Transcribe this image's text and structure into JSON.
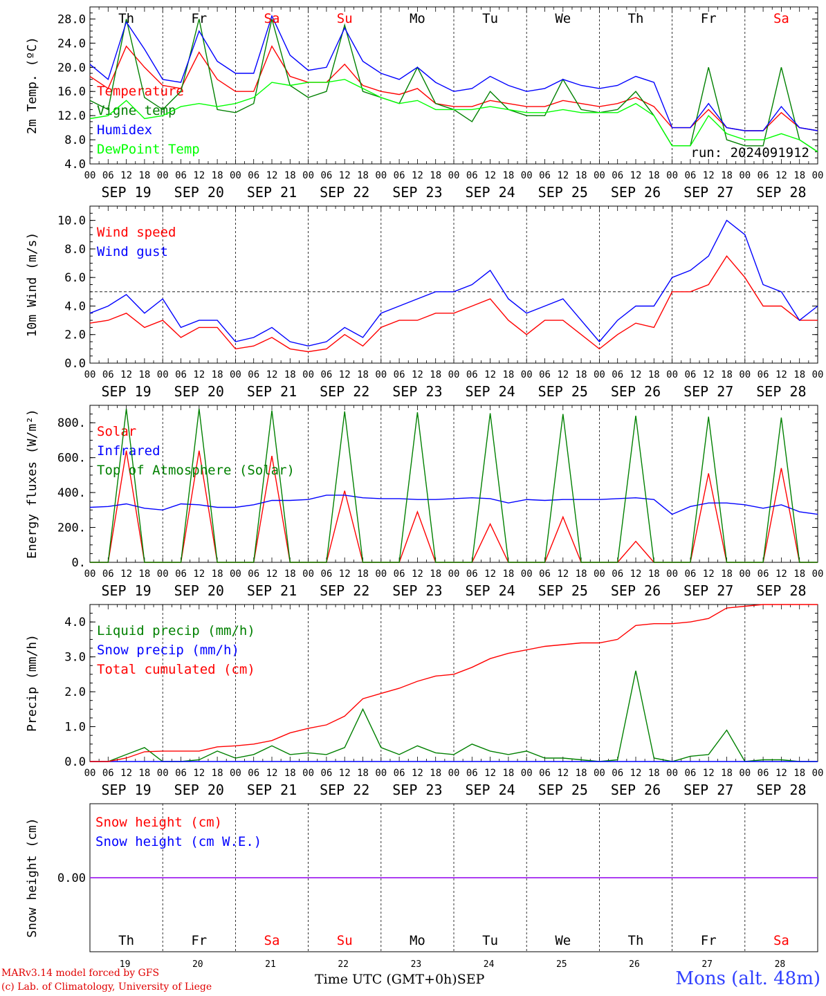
{
  "chart_data": [
    {
      "type": "line",
      "ylabel": "2m Temp. (ºC)",
      "ylim": [
        4,
        30
      ],
      "yticks": [
        "4.0",
        "8.0",
        "12.0",
        "16.0",
        "20.0",
        "24.0",
        "28.0"
      ],
      "run_label": "run: 2024091912",
      "x_hours": [
        0,
        6,
        12,
        18,
        24,
        30,
        36,
        42,
        48,
        54,
        60,
        66,
        72,
        78,
        84,
        90,
        96,
        102,
        108,
        114,
        120,
        126,
        132,
        138,
        144,
        150,
        156,
        162,
        168,
        174,
        180,
        186,
        192,
        198,
        204,
        210,
        216,
        222,
        228,
        234,
        240
      ],
      "series": [
        {
          "name": "Temperature",
          "color": "#ff0000",
          "values": [
            18.5,
            16.5,
            23.5,
            20,
            17,
            16.5,
            22.5,
            18,
            16,
            16,
            23.5,
            18.5,
            17.5,
            17.5,
            20.5,
            17,
            16,
            15.5,
            16.5,
            14,
            13.5,
            13.5,
            14.5,
            14,
            13.5,
            13.5,
            14.5,
            14,
            13.5,
            14,
            15,
            13.5,
            10,
            10,
            13,
            10,
            9.5,
            9.5,
            12.5,
            10,
            9.5
          ]
        },
        {
          "name": "Vigne temp",
          "color": "#008000",
          "values": [
            14.5,
            13,
            28,
            15,
            13,
            16,
            28,
            13,
            12.5,
            14,
            28,
            17,
            15,
            16,
            27,
            16,
            15,
            14,
            20,
            14,
            13,
            11,
            16,
            13,
            12,
            12,
            18,
            13,
            12.5,
            13,
            16,
            12,
            7,
            7,
            20,
            8,
            7,
            7,
            20,
            8,
            6
          ]
        },
        {
          "name": "Humidex",
          "color": "#0000ff",
          "values": [
            20.5,
            18,
            27.5,
            23,
            18,
            17.5,
            26,
            21,
            19,
            19,
            28.5,
            22,
            19.5,
            20,
            26.5,
            21,
            19,
            18,
            20,
            17.5,
            16,
            16.5,
            18.5,
            17,
            16,
            16.5,
            18,
            17,
            16.5,
            17,
            18.5,
            17.5,
            10,
            10,
            14,
            10,
            9.5,
            9.5,
            13.5,
            10,
            9.5
          ]
        },
        {
          "name": "DewPoint Temp",
          "color": "#00ff00",
          "values": [
            11.5,
            12,
            14.5,
            11.5,
            12,
            13.5,
            14,
            13.5,
            14,
            15,
            17.5,
            17,
            17.5,
            17.5,
            18,
            16.5,
            15,
            14,
            14.5,
            13,
            13,
            13,
            13.5,
            13,
            12.5,
            12.5,
            13,
            12.5,
            12.5,
            12.5,
            14,
            12,
            7,
            7,
            12,
            9,
            8,
            8,
            9,
            8,
            6
          ]
        }
      ]
    },
    {
      "type": "line",
      "ylabel": "10m Wind (m/s)",
      "ylim": [
        0,
        11
      ],
      "yticks": [
        "0.0",
        "2.0",
        "4.0",
        "6.0",
        "8.0",
        "10.0"
      ],
      "reference_line": 5,
      "x_hours": [
        0,
        6,
        12,
        18,
        24,
        30,
        36,
        42,
        48,
        54,
        60,
        66,
        72,
        78,
        84,
        90,
        96,
        102,
        108,
        114,
        120,
        126,
        132,
        138,
        144,
        150,
        156,
        162,
        168,
        174,
        180,
        186,
        192,
        198,
        204,
        210,
        216,
        222,
        228,
        234,
        240
      ],
      "series": [
        {
          "name": "Wind speed",
          "color": "#ff0000",
          "values": [
            2.8,
            3,
            3.5,
            2.5,
            3,
            1.8,
            2.5,
            2.5,
            1,
            1.2,
            1.8,
            1,
            0.8,
            1,
            2,
            1.2,
            2.5,
            3,
            3,
            3.5,
            3.5,
            4,
            4.5,
            3,
            2,
            3,
            3,
            2,
            1,
            2,
            2.8,
            2.5,
            5,
            5,
            5.5,
            7.5,
            6,
            4,
            4,
            3,
            3
          ]
        },
        {
          "name": "Wind gust",
          "color": "#0000ff",
          "values": [
            3.5,
            4,
            4.8,
            3.5,
            4.5,
            2.5,
            3,
            3,
            1.5,
            1.8,
            2.5,
            1.5,
            1.2,
            1.5,
            2.5,
            1.8,
            3.5,
            4,
            4.5,
            5,
            5,
            5.5,
            6.5,
            4.5,
            3.5,
            4,
            4.5,
            3,
            1.5,
            3,
            4,
            4,
            6,
            6.5,
            7.5,
            10,
            9,
            5.5,
            5,
            3,
            4
          ]
        }
      ]
    },
    {
      "type": "line",
      "ylabel": "Energy fluxes (W/m²)",
      "ylim": [
        0,
        900
      ],
      "yticks": [
        "0.",
        "200.",
        "400.",
        "600.",
        "800."
      ],
      "x_hours": [
        0,
        6,
        12,
        18,
        24,
        30,
        36,
        42,
        48,
        54,
        60,
        66,
        72,
        78,
        84,
        90,
        96,
        102,
        108,
        114,
        120,
        126,
        132,
        138,
        144,
        150,
        156,
        162,
        168,
        174,
        180,
        186,
        192,
        198,
        204,
        210,
        216,
        222,
        228,
        234,
        240
      ],
      "series": [
        {
          "name": "Solar",
          "color": "#ff0000",
          "values": [
            0,
            0,
            640,
            0,
            0,
            0,
            640,
            0,
            0,
            0,
            610,
            0,
            0,
            0,
            410,
            0,
            0,
            0,
            290,
            0,
            0,
            0,
            220,
            0,
            0,
            0,
            260,
            0,
            0,
            0,
            120,
            0,
            0,
            0,
            510,
            0,
            0,
            0,
            540,
            0,
            0
          ]
        },
        {
          "name": "Infrared",
          "color": "#0000ff",
          "values": [
            315,
            320,
            335,
            310,
            300,
            335,
            330,
            315,
            315,
            330,
            355,
            355,
            360,
            385,
            385,
            370,
            365,
            365,
            360,
            360,
            365,
            370,
            365,
            340,
            360,
            355,
            360,
            360,
            360,
            365,
            370,
            360,
            275,
            320,
            340,
            340,
            330,
            310,
            330,
            290,
            275
          ]
        },
        {
          "name": "Top of Atmosphere (Solar)",
          "color": "#008000",
          "values": [
            0,
            0,
            880,
            0,
            0,
            0,
            880,
            0,
            0,
            0,
            870,
            0,
            0,
            0,
            865,
            0,
            0,
            0,
            860,
            0,
            0,
            0,
            855,
            0,
            0,
            0,
            850,
            0,
            0,
            0,
            840,
            0,
            0,
            0,
            835,
            0,
            0,
            0,
            830,
            0,
            0
          ]
        }
      ]
    },
    {
      "type": "line",
      "ylabel": "Precip (mm/h)",
      "ylim": [
        0,
        4.5
      ],
      "yticks": [
        "0.0",
        "1.0",
        "2.0",
        "3.0",
        "4.0"
      ],
      "x_hours": [
        0,
        6,
        12,
        18,
        24,
        30,
        36,
        42,
        48,
        54,
        60,
        66,
        72,
        78,
        84,
        90,
        96,
        102,
        108,
        114,
        120,
        126,
        132,
        138,
        144,
        150,
        156,
        162,
        168,
        174,
        180,
        186,
        192,
        198,
        204,
        210,
        216,
        222,
        228,
        234,
        240
      ],
      "series": [
        {
          "name": "Liquid precip (mm/h)",
          "color": "#008000",
          "values": [
            0,
            0,
            0.2,
            0.4,
            0,
            0,
            0.05,
            0.3,
            0.1,
            0.2,
            0.45,
            0.2,
            0.25,
            0.2,
            0.4,
            1.5,
            0.4,
            0.2,
            0.45,
            0.25,
            0.2,
            0.5,
            0.3,
            0.2,
            0.3,
            0.1,
            0.1,
            0.05,
            0,
            0.05,
            2.6,
            0.1,
            0,
            0.15,
            0.2,
            0.9,
            0,
            0.05,
            0.05,
            0,
            0
          ]
        },
        {
          "name": "Snow precip (mm/h)",
          "color": "#0000ff",
          "values": [
            0,
            0,
            0,
            0,
            0,
            0,
            0,
            0,
            0,
            0,
            0,
            0,
            0,
            0,
            0,
            0,
            0,
            0,
            0,
            0,
            0,
            0,
            0,
            0,
            0,
            0,
            0,
            0,
            0,
            0,
            0,
            0,
            0,
            0,
            0,
            0,
            0,
            0,
            0,
            0,
            0
          ]
        },
        {
          "name": "Total cumulated (cm)",
          "color": "#ff0000",
          "values": [
            0,
            0,
            0.1,
            0.28,
            0.3,
            0.3,
            0.3,
            0.42,
            0.45,
            0.5,
            0.6,
            0.82,
            0.95,
            1.05,
            1.3,
            1.8,
            1.95,
            2.1,
            2.3,
            2.45,
            2.5,
            2.7,
            2.95,
            3.1,
            3.2,
            3.3,
            3.35,
            3.4,
            3.4,
            3.5,
            3.9,
            3.95,
            3.95,
            4.0,
            4.1,
            4.4,
            4.45,
            4.5,
            4.5,
            4.5,
            4.5
          ]
        }
      ]
    },
    {
      "type": "line",
      "ylabel": "Snow height (cm)",
      "ylim": [
        -1,
        1
      ],
      "yticks": [
        "0.00"
      ],
      "x_hours": [
        0,
        240
      ],
      "series": [
        {
          "name": "Snow height (cm)",
          "color": "#ff0000",
          "values": [
            0,
            0
          ]
        },
        {
          "name": "Snow height (cm W.E.)",
          "color": "#0000ff",
          "values": [
            0,
            0
          ]
        }
      ]
    }
  ],
  "days": [
    {
      "abbr": "Th",
      "date": "SEP 19",
      "num": "19",
      "weekend": false
    },
    {
      "abbr": "Fr",
      "date": "SEP 20",
      "num": "20",
      "weekend": false
    },
    {
      "abbr": "Sa",
      "date": "SEP 21",
      "num": "21",
      "weekend": true
    },
    {
      "abbr": "Su",
      "date": "SEP 22",
      "num": "22",
      "weekend": true
    },
    {
      "abbr": "Mo",
      "date": "SEP 23",
      "num": "23",
      "weekend": false
    },
    {
      "abbr": "Tu",
      "date": "SEP 24",
      "num": "24",
      "weekend": false
    },
    {
      "abbr": "We",
      "date": "SEP 25",
      "num": "25",
      "weekend": false
    },
    {
      "abbr": "Th",
      "date": "SEP 26",
      "num": "26",
      "weekend": false
    },
    {
      "abbr": "Fr",
      "date": "SEP 27",
      "num": "27",
      "weekend": false
    },
    {
      "abbr": "Sa",
      "date": "SEP 28",
      "num": "28",
      "weekend": true
    }
  ],
  "hour_ticks": [
    "00",
    "06",
    "12",
    "18"
  ],
  "footer": {
    "model": "MARv3.14 model forced by GFS",
    "credit": "(c) Lab. of Climatology, University of Liege",
    "xlabel": "Time UTC (GMT+0h)SEP",
    "station": "Mons (alt. 48m)"
  },
  "colors": {
    "weekday": "#000000",
    "weekend": "#ff0000"
  }
}
